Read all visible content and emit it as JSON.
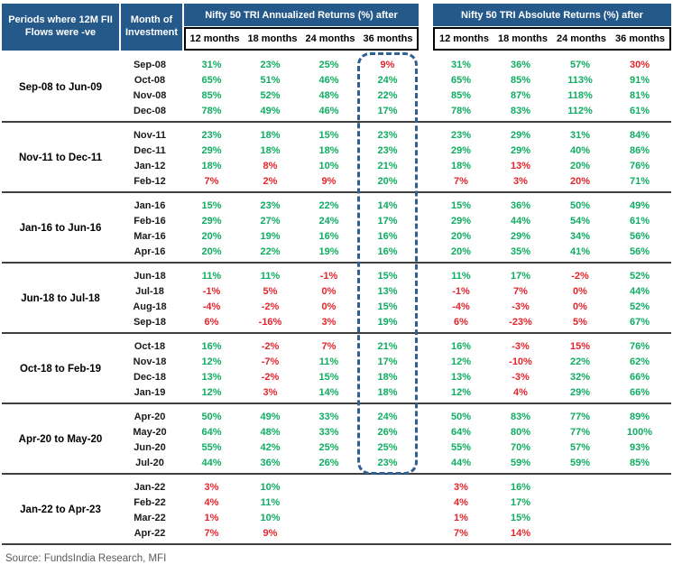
{
  "table": {
    "period_header": "Periods where 12M FII Flows were -ve",
    "month_header": "Month of Investment",
    "annualized_header": "Nifty 50 TRI Annualized Returns (%) after",
    "absolute_header": "Nifty 50 TRI Absolute Returns (%) after",
    "sub_headers": [
      "12 months",
      "18 months",
      "24 months",
      "36 months"
    ],
    "groups": [
      {
        "period": "Sep-08 to Jun-09",
        "rows": [
          {
            "month": "Sep-08",
            "ann": [
              "31%",
              "23%",
              "25%",
              "9%"
            ],
            "ann_c": "gggr",
            "abs": [
              "31%",
              "36%",
              "57%",
              "30%"
            ],
            "abs_c": "gggr"
          },
          {
            "month": "Oct-08",
            "ann": [
              "65%",
              "51%",
              "46%",
              "24%"
            ],
            "ann_c": "gggg",
            "abs": [
              "65%",
              "85%",
              "113%",
              "91%"
            ],
            "abs_c": "gggg"
          },
          {
            "month": "Nov-08",
            "ann": [
              "85%",
              "52%",
              "48%",
              "22%"
            ],
            "ann_c": "gggg",
            "abs": [
              "85%",
              "87%",
              "118%",
              "81%"
            ],
            "abs_c": "gggg"
          },
          {
            "month": "Dec-08",
            "ann": [
              "78%",
              "49%",
              "46%",
              "17%"
            ],
            "ann_c": "gggg",
            "abs": [
              "78%",
              "83%",
              "112%",
              "61%"
            ],
            "abs_c": "gggg"
          }
        ]
      },
      {
        "period": "Nov-11 to Dec-11",
        "rows": [
          {
            "month": "Nov-11",
            "ann": [
              "23%",
              "18%",
              "15%",
              "23%"
            ],
            "ann_c": "gggg",
            "abs": [
              "23%",
              "29%",
              "31%",
              "84%"
            ],
            "abs_c": "gggg"
          },
          {
            "month": "Dec-11",
            "ann": [
              "29%",
              "18%",
              "18%",
              "23%"
            ],
            "ann_c": "gggg",
            "abs": [
              "29%",
              "29%",
              "40%",
              "86%"
            ],
            "abs_c": "gggg"
          },
          {
            "month": "Jan-12",
            "ann": [
              "18%",
              "8%",
              "10%",
              "21%"
            ],
            "ann_c": "grgg",
            "abs": [
              "18%",
              "13%",
              "20%",
              "76%"
            ],
            "abs_c": "grgg"
          },
          {
            "month": "Feb-12",
            "ann": [
              "7%",
              "2%",
              "9%",
              "20%"
            ],
            "ann_c": "rrrg",
            "abs": [
              "7%",
              "3%",
              "20%",
              "71%"
            ],
            "abs_c": "rrrg"
          }
        ]
      },
      {
        "period": "Jan-16 to Jun-16",
        "rows": [
          {
            "month": "Jan-16",
            "ann": [
              "15%",
              "23%",
              "22%",
              "14%"
            ],
            "ann_c": "gggg",
            "abs": [
              "15%",
              "36%",
              "50%",
              "49%"
            ],
            "abs_c": "gggg"
          },
          {
            "month": "Feb-16",
            "ann": [
              "29%",
              "27%",
              "24%",
              "17%"
            ],
            "ann_c": "gggg",
            "abs": [
              "29%",
              "44%",
              "54%",
              "61%"
            ],
            "abs_c": "gggg"
          },
          {
            "month": "Mar-16",
            "ann": [
              "20%",
              "19%",
              "16%",
              "16%"
            ],
            "ann_c": "gggg",
            "abs": [
              "20%",
              "29%",
              "34%",
              "56%"
            ],
            "abs_c": "gggg"
          },
          {
            "month": "Apr-16",
            "ann": [
              "20%",
              "22%",
              "19%",
              "16%"
            ],
            "ann_c": "gggg",
            "abs": [
              "20%",
              "35%",
              "41%",
              "56%"
            ],
            "abs_c": "gggg"
          }
        ]
      },
      {
        "period": "Jun-18 to Jul-18",
        "rows": [
          {
            "month": "Jun-18",
            "ann": [
              "11%",
              "11%",
              "-1%",
              "15%"
            ],
            "ann_c": "ggrg",
            "abs": [
              "11%",
              "17%",
              "-2%",
              "52%"
            ],
            "abs_c": "ggrg"
          },
          {
            "month": "Jul-18",
            "ann": [
              "-1%",
              "5%",
              "0%",
              "13%"
            ],
            "ann_c": "rrrg",
            "abs": [
              "-1%",
              "7%",
              "0%",
              "44%"
            ],
            "abs_c": "rrrg"
          },
          {
            "month": "Aug-18",
            "ann": [
              "-4%",
              "-2%",
              "0%",
              "15%"
            ],
            "ann_c": "rrrg",
            "abs": [
              "-4%",
              "-3%",
              "0%",
              "52%"
            ],
            "abs_c": "rrrg"
          },
          {
            "month": "Sep-18",
            "ann": [
              "6%",
              "-16%",
              "3%",
              "19%"
            ],
            "ann_c": "rrrg",
            "abs": [
              "6%",
              "-23%",
              "5%",
              "67%"
            ],
            "abs_c": "rrrg"
          }
        ]
      },
      {
        "period": "Oct-18 to Feb-19",
        "rows": [
          {
            "month": "Oct-18",
            "ann": [
              "16%",
              "-2%",
              "7%",
              "21%"
            ],
            "ann_c": "grrg",
            "abs": [
              "16%",
              "-3%",
              "15%",
              "76%"
            ],
            "abs_c": "grrg"
          },
          {
            "month": "Nov-18",
            "ann": [
              "12%",
              "-7%",
              "11%",
              "17%"
            ],
            "ann_c": "grgg",
            "abs": [
              "12%",
              "-10%",
              "22%",
              "62%"
            ],
            "abs_c": "grgg"
          },
          {
            "month": "Dec-18",
            "ann": [
              "13%",
              "-2%",
              "15%",
              "18%"
            ],
            "ann_c": "grgg",
            "abs": [
              "13%",
              "-3%",
              "32%",
              "66%"
            ],
            "abs_c": "grgg"
          },
          {
            "month": "Jan-19",
            "ann": [
              "12%",
              "3%",
              "14%",
              "18%"
            ],
            "ann_c": "grgg",
            "abs": [
              "12%",
              "4%",
              "29%",
              "66%"
            ],
            "abs_c": "grgg"
          }
        ]
      },
      {
        "period": "Apr-20 to May-20",
        "rows": [
          {
            "month": "Apr-20",
            "ann": [
              "50%",
              "49%",
              "33%",
              "24%"
            ],
            "ann_c": "gggg",
            "abs": [
              "50%",
              "83%",
              "77%",
              "89%"
            ],
            "abs_c": "gggg"
          },
          {
            "month": "May-20",
            "ann": [
              "64%",
              "48%",
              "33%",
              "26%"
            ],
            "ann_c": "gggg",
            "abs": [
              "64%",
              "80%",
              "77%",
              "100%"
            ],
            "abs_c": "gggg"
          },
          {
            "month": "Jun-20",
            "ann": [
              "55%",
              "42%",
              "25%",
              "25%"
            ],
            "ann_c": "gggg",
            "abs": [
              "55%",
              "70%",
              "57%",
              "93%"
            ],
            "abs_c": "gggg"
          },
          {
            "month": "Jul-20",
            "ann": [
              "44%",
              "36%",
              "26%",
              "23%"
            ],
            "ann_c": "gggg",
            "abs": [
              "44%",
              "59%",
              "59%",
              "85%"
            ],
            "abs_c": "gggg"
          }
        ]
      },
      {
        "period": "Jan-22 to Apr-23",
        "rows": [
          {
            "month": "Jan-22",
            "ann": [
              "3%",
              "10%",
              "",
              ""
            ],
            "ann_c": "rg--",
            "abs": [
              "3%",
              "16%",
              "",
              ""
            ],
            "abs_c": "rg--"
          },
          {
            "month": "Feb-22",
            "ann": [
              "4%",
              "11%",
              "",
              ""
            ],
            "ann_c": "rg--",
            "abs": [
              "4%",
              "17%",
              "",
              ""
            ],
            "abs_c": "rg--"
          },
          {
            "month": "Mar-22",
            "ann": [
              "1%",
              "10%",
              "",
              ""
            ],
            "ann_c": "rg--",
            "abs": [
              "1%",
              "15%",
              "",
              ""
            ],
            "abs_c": "rg--"
          },
          {
            "month": "Apr-22",
            "ann": [
              "7%",
              "9%",
              "",
              ""
            ],
            "ann_c": "rr--",
            "abs": [
              "7%",
              "14%",
              "",
              ""
            ],
            "abs_c": "rr--"
          }
        ]
      }
    ]
  },
  "highlight": {
    "description": "dashed rounded box around 36 months annualized column, Sep-08 through Jul-20",
    "groups_covered": 6
  },
  "colors": {
    "header_bg": "#25598a",
    "positive": "#0fad61",
    "negative": "#e5242b",
    "highlight_border": "#2f6093",
    "separator": "#3f3f3f",
    "source_text": "#595959"
  },
  "footer": {
    "source": "Source: FundsIndia Research, MFI"
  }
}
